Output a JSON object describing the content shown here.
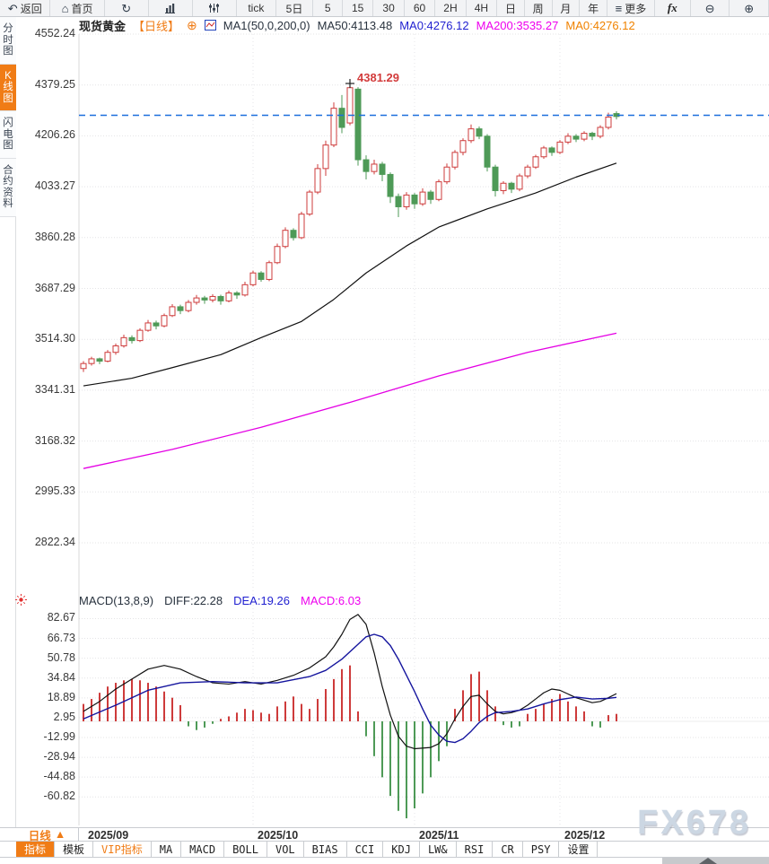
{
  "watermark": "FX678",
  "toolbar": {
    "items": [
      {
        "name": "back",
        "glyph": "↶",
        "label": "返回"
      },
      {
        "name": "home",
        "glyph": "⌂",
        "label": "首页"
      },
      {
        "name": "refresh",
        "glyph": "↻"
      },
      {
        "name": "chart-type",
        "svg": "bars"
      },
      {
        "name": "indicator-settings",
        "svg": "sliders"
      },
      {
        "name": "interval-tick",
        "label": "tick"
      },
      {
        "name": "interval-5d",
        "label": "5日"
      },
      {
        "name": "interval-5",
        "label": "5"
      },
      {
        "name": "interval-15",
        "label": "15"
      },
      {
        "name": "interval-30",
        "label": "30"
      },
      {
        "name": "interval-60",
        "label": "60"
      },
      {
        "name": "interval-2h",
        "label": "2H"
      },
      {
        "name": "interval-4h",
        "label": "4H"
      },
      {
        "name": "interval-day",
        "label": "日"
      },
      {
        "name": "interval-week",
        "label": "周"
      },
      {
        "name": "interval-month",
        "label": "月"
      },
      {
        "name": "interval-year",
        "label": "年"
      },
      {
        "name": "more",
        "glyph": "≡",
        "label": "更多"
      },
      {
        "name": "fx",
        "label": "fx",
        "fx": true
      },
      {
        "name": "zoom-out",
        "glyph": "⊖"
      },
      {
        "name": "zoom-in",
        "glyph": "⊕"
      }
    ]
  },
  "sidebar": {
    "items": [
      {
        "label": "分时图",
        "selected": false
      },
      {
        "label": "K线图",
        "selected": true
      },
      {
        "label": "闪电图",
        "selected": false
      },
      {
        "label": "合约资料",
        "selected": false
      }
    ]
  },
  "legend": {
    "symbol": "现货黄金",
    "period": "【日线】",
    "ma_group": "MA1(50,0,200,0)",
    "ma50": "MA50:4113.48",
    "ma0_blue": "MA0:4276.12",
    "ma200": "MA200:3535.27",
    "ma0_orange": "MA0:4276.12"
  },
  "macd_legend": {
    "title": "MACD(13,8,9)",
    "diff": "DIFF:22.28",
    "dea": "DEA:19.26",
    "macd": "MACD:6.03"
  },
  "bottom": {
    "period_label": "日线",
    "period_arrow": "▲",
    "tabs": [
      {
        "label": "指标",
        "selected": true
      },
      {
        "label": "模板"
      },
      {
        "label": "VIP指标",
        "vip": true
      },
      {
        "label": "MA"
      },
      {
        "label": "MACD"
      },
      {
        "label": "BOLL"
      },
      {
        "label": "VOL"
      },
      {
        "label": "BIAS"
      },
      {
        "label": "CCI"
      },
      {
        "label": "KDJ"
      },
      {
        "label": "LW&"
      },
      {
        "label": "RSI"
      },
      {
        "label": "CR"
      },
      {
        "label": "PSY"
      },
      {
        "label": "设置"
      }
    ]
  },
  "chart_data": {
    "type": "candlestick",
    "symbol": "现货黄金",
    "timeframe": "日线",
    "colors": {
      "up": "#ce3b3b",
      "down": "#4e9a57",
      "price_line": "#1c6fdd",
      "dea": "#15159e",
      "grid": "#e4e4e6"
    },
    "price_axis": {
      "ticks": [
        4552.24,
        4379.25,
        4206.26,
        4033.27,
        3860.28,
        3687.29,
        3514.3,
        3341.31,
        3168.32,
        2995.33,
        2822.34
      ],
      "current_price": 4276.12
    },
    "x_axis": {
      "labels": [
        "2025/09",
        "2025/10",
        "2025/11",
        "2025/12"
      ],
      "month_start_indices": [
        0,
        21,
        41,
        59
      ]
    },
    "peak": {
      "index": 33,
      "price": 4381.29,
      "label": "4381.29"
    },
    "candles": [
      [
        3415,
        3440,
        3403,
        3432
      ],
      [
        3432,
        3455,
        3425,
        3448
      ],
      [
        3448,
        3452,
        3430,
        3440
      ],
      [
        3440,
        3478,
        3436,
        3470
      ],
      [
        3470,
        3500,
        3462,
        3492
      ],
      [
        3492,
        3530,
        3486,
        3520
      ],
      [
        3520,
        3528,
        3500,
        3510
      ],
      [
        3510,
        3552,
        3505,
        3545
      ],
      [
        3545,
        3580,
        3540,
        3570
      ],
      [
        3570,
        3578,
        3548,
        3560
      ],
      [
        3560,
        3602,
        3555,
        3595
      ],
      [
        3595,
        3634,
        3590,
        3625
      ],
      [
        3625,
        3632,
        3600,
        3612
      ],
      [
        3612,
        3648,
        3606,
        3640
      ],
      [
        3640,
        3665,
        3632,
        3655
      ],
      [
        3655,
        3662,
        3635,
        3648
      ],
      [
        3648,
        3668,
        3640,
        3660
      ],
      [
        3660,
        3666,
        3632,
        3645
      ],
      [
        3645,
        3680,
        3640,
        3672
      ],
      [
        3672,
        3678,
        3652,
        3665
      ],
      [
        3665,
        3710,
        3660,
        3700
      ],
      [
        3700,
        3748,
        3694,
        3740
      ],
      [
        3740,
        3746,
        3710,
        3718
      ],
      [
        3718,
        3782,
        3712,
        3775
      ],
      [
        3775,
        3840,
        3770,
        3830
      ],
      [
        3830,
        3895,
        3824,
        3885
      ],
      [
        3885,
        3892,
        3850,
        3860
      ],
      [
        3860,
        3948,
        3855,
        3940
      ],
      [
        3940,
        4022,
        3934,
        4015
      ],
      [
        4015,
        4110,
        4008,
        4095
      ],
      [
        4095,
        4190,
        4070,
        4175
      ],
      [
        4175,
        4320,
        4168,
        4300
      ],
      [
        4300,
        4345,
        4215,
        4235
      ],
      [
        4250,
        4381.29,
        4242,
        4370
      ],
      [
        4365,
        4372,
        4105,
        4125
      ],
      [
        4125,
        4140,
        4058,
        4085
      ],
      [
        4085,
        4125,
        4075,
        4110
      ],
      [
        4110,
        4118,
        4052,
        4075
      ],
      [
        4075,
        4082,
        3978,
        4000
      ],
      [
        4000,
        4010,
        3930,
        3965
      ],
      [
        3965,
        4015,
        3955,
        4005
      ],
      [
        4005,
        4012,
        3958,
        3975
      ],
      [
        3975,
        4028,
        3968,
        4015
      ],
      [
        4015,
        4022,
        3975,
        3990
      ],
      [
        3990,
        4058,
        3984,
        4050
      ],
      [
        4050,
        4112,
        4042,
        4100
      ],
      [
        4100,
        4158,
        4092,
        4150
      ],
      [
        4150,
        4198,
        4140,
        4190
      ],
      [
        4190,
        4245,
        4182,
        4230
      ],
      [
        4230,
        4238,
        4195,
        4205
      ],
      [
        4205,
        4212,
        4085,
        4100
      ],
      [
        4100,
        4108,
        4000,
        4020
      ],
      [
        4020,
        4052,
        4008,
        4045
      ],
      [
        4045,
        4050,
        4012,
        4025
      ],
      [
        4025,
        4078,
        4018,
        4070
      ],
      [
        4070,
        4108,
        4062,
        4100
      ],
      [
        4100,
        4142,
        4094,
        4135
      ],
      [
        4135,
        4172,
        4128,
        4165
      ],
      [
        4165,
        4170,
        4138,
        4150
      ],
      [
        4150,
        4192,
        4144,
        4185
      ],
      [
        4185,
        4215,
        4178,
        4205
      ],
      [
        4205,
        4212,
        4185,
        4195
      ],
      [
        4195,
        4222,
        4188,
        4215
      ],
      [
        4215,
        4220,
        4192,
        4205
      ],
      [
        4205,
        4242,
        4198,
        4235
      ],
      [
        4235,
        4285,
        4228,
        4270
      ],
      [
        4282,
        4290,
        4262,
        4272
      ]
    ],
    "ma50": {
      "name": "MA50",
      "period": 50,
      "value": 4113.48,
      "color": "#111111",
      "points": [
        [
          0,
          3356
        ],
        [
          6,
          3382
        ],
        [
          11,
          3418
        ],
        [
          17,
          3462
        ],
        [
          22,
          3520
        ],
        [
          27,
          3575
        ],
        [
          31,
          3650
        ],
        [
          35,
          3740
        ],
        [
          40,
          3832
        ],
        [
          44,
          3896
        ],
        [
          50,
          3958
        ],
        [
          56,
          4012
        ],
        [
          61,
          4066
        ],
        [
          66,
          4113.48
        ]
      ]
    },
    "ma200": {
      "name": "MA200",
      "period": 200,
      "value": 3535.27,
      "color": "#e400e4",
      "points": [
        [
          0,
          3075
        ],
        [
          11,
          3140
        ],
        [
          22,
          3215
        ],
        [
          33,
          3300
        ],
        [
          44,
          3390
        ],
        [
          55,
          3470
        ],
        [
          66,
          3535.27
        ]
      ]
    },
    "macd": {
      "params": [
        13,
        8,
        9
      ],
      "diff": 22.28,
      "dea": 19.26,
      "macd": 6.03,
      "axis_ticks": [
        82.67,
        66.73,
        50.78,
        34.84,
        18.89,
        2.95,
        -12.99,
        -28.94,
        -44.88,
        -60.82
      ],
      "histogram": [
        14,
        18,
        23,
        28,
        31,
        33,
        34,
        33,
        31,
        28,
        24,
        19,
        13,
        -4,
        -7,
        -5,
        -2,
        2,
        4,
        7,
        10,
        9,
        7,
        6,
        12,
        16,
        20,
        14,
        10,
        18,
        26,
        34,
        42,
        45,
        8,
        -12,
        -28,
        -45,
        -60,
        -72,
        -78,
        -70,
        -58,
        -45,
        -32,
        -20,
        10,
        25,
        38,
        40,
        25,
        12,
        -3,
        -5,
        -4,
        6,
        10,
        14,
        18,
        22,
        16,
        12,
        8,
        -4,
        -5,
        5,
        6
      ],
      "diff_points": [
        [
          0,
          8
        ],
        [
          2,
          16
        ],
        [
          4,
          26
        ],
        [
          6,
          34
        ],
        [
          8,
          42
        ],
        [
          10,
          45
        ],
        [
          12,
          42
        ],
        [
          14,
          36
        ],
        [
          16,
          31
        ],
        [
          18,
          30
        ],
        [
          20,
          32
        ],
        [
          22,
          30
        ],
        [
          24,
          33
        ],
        [
          26,
          37
        ],
        [
          28,
          43
        ],
        [
          30,
          52
        ],
        [
          31,
          60
        ],
        [
          32,
          70
        ],
        [
          33,
          82
        ],
        [
          34,
          86
        ],
        [
          35,
          78
        ],
        [
          36,
          55
        ],
        [
          37,
          28
        ],
        [
          38,
          5
        ],
        [
          39,
          -12
        ],
        [
          40,
          -20
        ],
        [
          41,
          -22
        ],
        [
          43,
          -21
        ],
        [
          44,
          -18
        ],
        [
          45,
          -10
        ],
        [
          46,
          2
        ],
        [
          47,
          12
        ],
        [
          48,
          20
        ],
        [
          49,
          21
        ],
        [
          50,
          14
        ],
        [
          51,
          8
        ],
        [
          52,
          6
        ],
        [
          53,
          7
        ],
        [
          54,
          9
        ],
        [
          55,
          13
        ],
        [
          56,
          18
        ],
        [
          57,
          23
        ],
        [
          58,
          26
        ],
        [
          59,
          25
        ],
        [
          60,
          22
        ],
        [
          61,
          19
        ],
        [
          62,
          17
        ],
        [
          63,
          15
        ],
        [
          64,
          16
        ],
        [
          65,
          19
        ],
        [
          66,
          22.3
        ]
      ],
      "dea_points": [
        [
          0,
          2
        ],
        [
          4,
          13
        ],
        [
          8,
          25
        ],
        [
          12,
          31
        ],
        [
          16,
          32
        ],
        [
          20,
          31
        ],
        [
          24,
          31
        ],
        [
          28,
          36
        ],
        [
          30,
          41
        ],
        [
          32,
          50
        ],
        [
          34,
          62
        ],
        [
          35,
          68
        ],
        [
          36,
          70
        ],
        [
          37,
          68
        ],
        [
          38,
          61
        ],
        [
          39,
          50
        ],
        [
          40,
          37
        ],
        [
          41,
          24
        ],
        [
          42,
          10
        ],
        [
          43,
          -3
        ],
        [
          44,
          -11
        ],
        [
          45,
          -16
        ],
        [
          46,
          -17
        ],
        [
          47,
          -14
        ],
        [
          48,
          -8
        ],
        [
          49,
          -1
        ],
        [
          50,
          4
        ],
        [
          51,
          7
        ],
        [
          53,
          8
        ],
        [
          55,
          10
        ],
        [
          57,
          14
        ],
        [
          59,
          17.5
        ],
        [
          61,
          19.5
        ],
        [
          63,
          18
        ],
        [
          65,
          18.5
        ],
        [
          66,
          19.3
        ]
      ]
    }
  }
}
